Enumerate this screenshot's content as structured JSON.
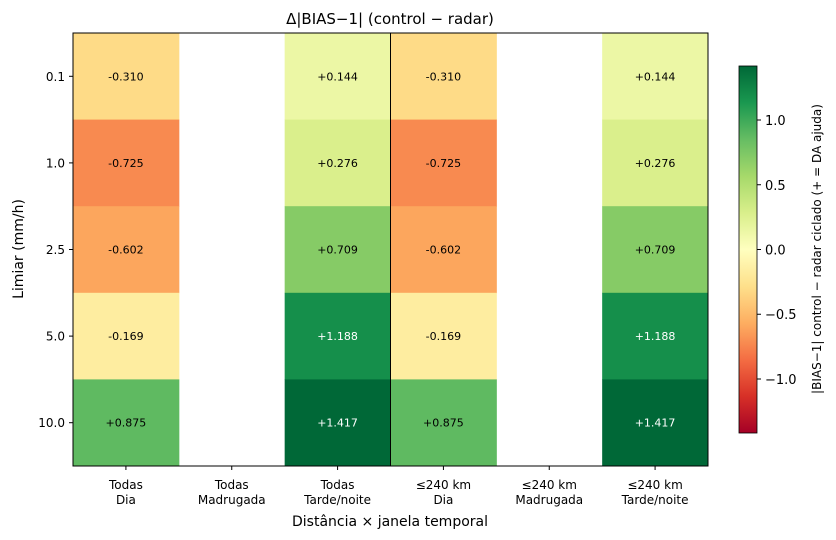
{
  "chart_data": {
    "type": "heatmap",
    "title": "Δ|BIAS−1|  (control − radar)",
    "xlabel": "Distância × janela temporal",
    "ylabel": "Limiar (mm/h)",
    "columns": [
      [
        "Todas",
        "Dia"
      ],
      [
        "Todas",
        "Madrugada"
      ],
      [
        "Todas",
        "Tarde/noite"
      ],
      [
        "≤240 km",
        "Dia"
      ],
      [
        "≤240 km",
        "Madrugada"
      ],
      [
        "≤240 km",
        "Tarde/noite"
      ]
    ],
    "rows": [
      "0.1",
      "1.0",
      "2.5",
      "5.0",
      "10.0"
    ],
    "values": [
      [
        -0.31,
        null,
        0.144,
        -0.31,
        null,
        0.144
      ],
      [
        -0.725,
        null,
        0.276,
        -0.725,
        null,
        0.276
      ],
      [
        -0.602,
        null,
        0.709,
        -0.602,
        null,
        0.709
      ],
      [
        -0.169,
        null,
        1.188,
        -0.169,
        null,
        1.188
      ],
      [
        0.875,
        null,
        1.417,
        0.875,
        null,
        1.417
      ]
    ],
    "labels": [
      [
        "-0.310",
        "",
        "+0.144",
        "-0.310",
        "",
        "+0.144"
      ],
      [
        "-0.725",
        "",
        "+0.276",
        "-0.725",
        "",
        "+0.276"
      ],
      [
        "-0.602",
        "",
        "+0.709",
        "-0.602",
        "",
        "+0.709"
      ],
      [
        "-0.169",
        "",
        "+1.188",
        "-0.169",
        "",
        "+1.188"
      ],
      [
        "+0.875",
        "",
        "+1.417",
        "+0.875",
        "",
        "+1.417"
      ]
    ],
    "colormap": "RdYlGn",
    "vlim": [
      -1.417,
      1.417
    ],
    "colorbar": {
      "label": "|BIAS−1| control − radar ciclado  (+ = DA ajuda)",
      "ticks": [
        1.0,
        0.5,
        0.0,
        -0.5,
        -1.0
      ],
      "tick_labels": [
        "1.0",
        "0.5",
        "0.0",
        "−0.5",
        "−1.0"
      ]
    }
  }
}
